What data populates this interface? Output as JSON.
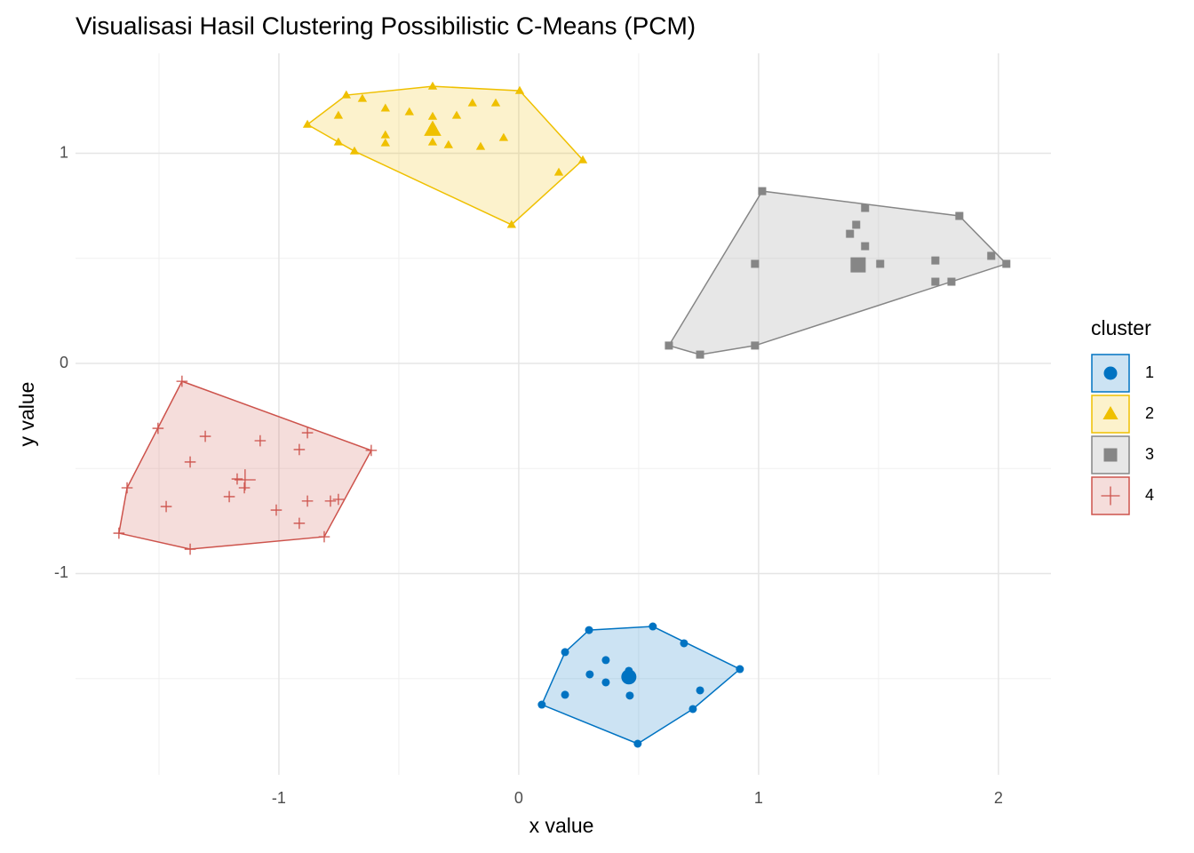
{
  "chart_data": {
    "type": "scatter",
    "title": "Visualisasi Hasil Clustering Possibilistic C-Means (PCM)",
    "x_label": "x value",
    "y_label": "y value",
    "legend_title": "cluster",
    "xlim": [
      -1.848,
      2.219
    ],
    "ylim": [
      -1.958,
      1.476
    ],
    "xticks": [
      -1,
      0,
      1,
      2
    ],
    "yticks": [
      -1,
      0,
      1
    ],
    "grid": true,
    "legend": "right",
    "series": [
      {
        "name": "1",
        "color": "#0073C2",
        "shape": "circle",
        "x": [
          0.096,
          0.496,
          0.922,
          0.559,
          0.293,
          0.193,
          0.689,
          0.726,
          0.756,
          0.193,
          0.296,
          0.363,
          0.363,
          0.459,
          0.463
        ],
        "y": [
          -1.624,
          -1.81,
          -1.455,
          -1.252,
          -1.269,
          -1.374,
          -1.332,
          -1.645,
          -1.556,
          -1.577,
          -1.48,
          -1.412,
          -1.518,
          -1.463,
          -1.581
        ],
        "center": [
          0.459,
          -1.492
        ]
      },
      {
        "name": "2",
        "color": "#EFC000",
        "shape": "triangle",
        "x": [
          -0.881,
          -0.719,
          -0.359,
          0.004,
          0.267,
          -0.03,
          -0.685,
          -0.752,
          -0.752,
          -0.652,
          -0.556,
          -0.456,
          -0.556,
          -0.556,
          -0.359,
          -0.359,
          -0.359,
          -0.293,
          -0.259,
          -0.193,
          -0.096,
          -0.159,
          -0.063,
          0.167
        ],
        "y": [
          1.137,
          1.277,
          1.319,
          1.298,
          0.968,
          0.66,
          1.01,
          1.053,
          1.18,
          1.26,
          1.214,
          1.197,
          1.087,
          1.049,
          1.175,
          1.133,
          1.053,
          1.04,
          1.18,
          1.239,
          1.239,
          1.032,
          1.074,
          0.909
        ],
        "center": [
          -0.359,
          1.112
        ]
      },
      {
        "name": "3",
        "color": "#868686",
        "shape": "square",
        "x": [
          0.626,
          0.756,
          0.985,
          1.015,
          1.837,
          2.033,
          0.985,
          1.381,
          1.407,
          1.444,
          1.444,
          1.507,
          1.737,
          1.97,
          1.737,
          1.804,
          1.407
        ],
        "y": [
          0.085,
          0.042,
          0.085,
          0.82,
          0.702,
          0.474,
          0.474,
          0.617,
          0.66,
          0.74,
          0.558,
          0.474,
          0.49,
          0.512,
          0.389,
          0.389,
          0.474
        ],
        "center": [
          1.415,
          0.469
        ]
      },
      {
        "name": "4",
        "color": "#CD534C",
        "shape": "plus",
        "x": [
          -1.404,
          -0.615,
          -0.811,
          -1.37,
          -1.667,
          -1.633,
          -1.504,
          -1.307,
          -1.078,
          -0.881,
          -0.915,
          -1.37,
          -1.174,
          -1.144,
          -1.207,
          -1.47,
          -1.011,
          -0.881,
          -0.785,
          -0.752,
          -0.915
        ],
        "y": [
          -0.085,
          -0.414,
          -0.825,
          -0.884,
          -0.808,
          -0.592,
          -0.309,
          -0.347,
          -0.368,
          -0.33,
          -0.41,
          -0.469,
          -0.55,
          -0.592,
          -0.634,
          -0.681,
          -0.698,
          -0.655,
          -0.655,
          -0.647,
          -0.761
        ],
        "center": [
          -1.141,
          -0.554
        ]
      }
    ]
  }
}
